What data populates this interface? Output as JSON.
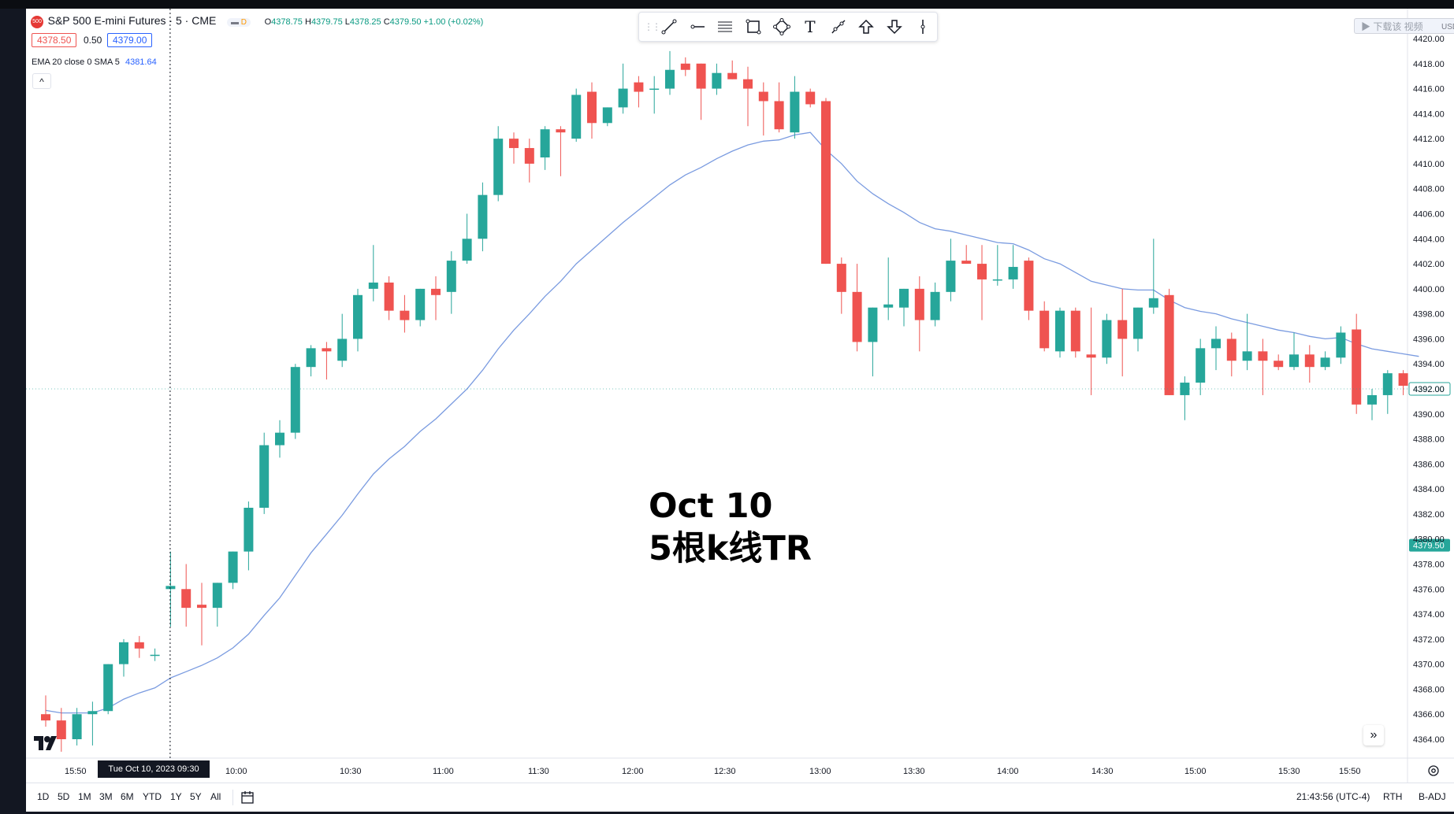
{
  "header": {
    "symbol_badge": "500",
    "symbol_title": "S&P 500 E-mini Futures · 5 · CME",
    "status_badge": "D",
    "open_label": "O",
    "open": "4378.75",
    "high_label": "H",
    "high": "4379.75",
    "low_label": "L",
    "low": "4378.25",
    "close_label": "C",
    "close": "4379.50",
    "change": "+1.00 (+0.02%)",
    "bid": "4378.50",
    "spread": "0.50",
    "ask": "4379.00",
    "indicator_label": "EMA 20 close 0 SMA 5",
    "indicator_value": "4381.64",
    "collapse_glyph": "^"
  },
  "watermark_text": "▶ 下载该 视频",
  "currency": "USD",
  "annotation": {
    "line1": "Oct 10",
    "line2": "5根k线TR"
  },
  "crosshair_label": "Tue Oct 10, 2023   09:30",
  "bottom": {
    "ranges": [
      "1D",
      "5D",
      "1M",
      "3M",
      "6M",
      "YTD",
      "1Y",
      "5Y",
      "All"
    ],
    "clock": "21:43:56 (UTC-4)",
    "session": "RTH",
    "adjust": "B-ADJ"
  },
  "colors": {
    "up": "#26a69a",
    "down": "#ef5350",
    "ema": "#7a9be0",
    "crosshair": "#131722",
    "last": "#26a69a"
  },
  "icons": [
    "trend-line-icon",
    "horizontal-ray-icon",
    "parallel-channel-icon",
    "rectangle-icon",
    "path-icon",
    "text-icon",
    "brush-icon",
    "arrow-up-icon",
    "arrow-down-icon",
    "vertical-line-icon",
    "tradingview-logo-icon",
    "scroll-right-icon",
    "settings-icon",
    "calendar-icon"
  ],
  "chart_data": {
    "type": "candlestick",
    "title": "S&P 500 E-mini Futures · 5 · CME",
    "ylim": [
      4363.0,
      4421.0
    ],
    "y_ticks": [
      "4420.00",
      "4418.00",
      "4416.00",
      "4414.00",
      "4412.00",
      "4410.00",
      "4408.00",
      "4406.00",
      "4404.00",
      "4402.00",
      "4400.00",
      "4398.00",
      "4396.00",
      "4394.00",
      "4392.00",
      "4390.00",
      "4388.00",
      "4386.00",
      "4384.00",
      "4382.00",
      "4380.00",
      "4378.00",
      "4376.00",
      "4374.00",
      "4372.00",
      "4370.00",
      "4368.00",
      "4366.00",
      "4364.00"
    ],
    "x_ticks": [
      "15:50",
      "10:00",
      "10:30",
      "11:00",
      "11:30",
      "12:00",
      "12:30",
      "13:00",
      "13:30",
      "14:00",
      "14:30",
      "15:00",
      "15:30",
      "15:50"
    ],
    "price_labels": {
      "current": "4392.00",
      "last": "4379.50"
    },
    "candles": [
      {
        "o": 4366.0,
        "h": 4367.5,
        "l": 4365.0,
        "c": 4365.5
      },
      {
        "o": 4365.5,
        "h": 4366.5,
        "l": 4363.0,
        "c": 4364.0
      },
      {
        "o": 4364.0,
        "h": 4366.5,
        "l": 4363.5,
        "c": 4366.0
      },
      {
        "o": 4366.0,
        "h": 4367.0,
        "l": 4363.5,
        "c": 4366.25
      },
      {
        "o": 4366.25,
        "h": 4370.0,
        "l": 4366.0,
        "c": 4370.0
      },
      {
        "o": 4370.0,
        "h": 4372.0,
        "l": 4369.0,
        "c": 4371.75
      },
      {
        "o": 4371.75,
        "h": 4372.25,
        "l": 4370.5,
        "c": 4371.25
      },
      {
        "o": 4370.75,
        "h": 4371.25,
        "l": 4370.25,
        "c": 4370.75
      },
      {
        "o": 4376.0,
        "h": 4379.0,
        "l": 4373.0,
        "c": 4376.25
      },
      {
        "o": 4376.0,
        "h": 4378.0,
        "l": 4373.0,
        "c": 4374.5
      },
      {
        "o": 4374.75,
        "h": 4376.5,
        "l": 4371.5,
        "c": 4374.5
      },
      {
        "o": 4374.5,
        "h": 4376.5,
        "l": 4373.0,
        "c": 4376.5
      },
      {
        "o": 4376.5,
        "h": 4379.0,
        "l": 4376.0,
        "c": 4379.0
      },
      {
        "o": 4379.0,
        "h": 4383.0,
        "l": 4377.5,
        "c": 4382.5
      },
      {
        "o": 4382.5,
        "h": 4388.5,
        "l": 4382.0,
        "c": 4387.5
      },
      {
        "o": 4387.5,
        "h": 4389.5,
        "l": 4386.5,
        "c": 4388.5
      },
      {
        "o": 4388.5,
        "h": 4394.0,
        "l": 4388.0,
        "c": 4393.75
      },
      {
        "o": 4393.75,
        "h": 4395.5,
        "l": 4393.0,
        "c": 4395.25
      },
      {
        "o": 4395.25,
        "h": 4395.75,
        "l": 4392.75,
        "c": 4395.0
      },
      {
        "o": 4394.25,
        "h": 4398.0,
        "l": 4393.75,
        "c": 4396.0
      },
      {
        "o": 4396.0,
        "h": 4400.0,
        "l": 4395.0,
        "c": 4399.5
      },
      {
        "o": 4400.0,
        "h": 4403.5,
        "l": 4399.0,
        "c": 4400.5
      },
      {
        "o": 4400.5,
        "h": 4401.0,
        "l": 4397.5,
        "c": 4398.25
      },
      {
        "o": 4398.25,
        "h": 4399.5,
        "l": 4396.5,
        "c": 4397.5
      },
      {
        "o": 4397.5,
        "h": 4400.0,
        "l": 4397.0,
        "c": 4400.0
      },
      {
        "o": 4400.0,
        "h": 4401.0,
        "l": 4397.5,
        "c": 4399.5
      },
      {
        "o": 4399.75,
        "h": 4403.0,
        "l": 4398.0,
        "c": 4402.25
      },
      {
        "o": 4402.25,
        "h": 4406.0,
        "l": 4402.0,
        "c": 4404.0
      },
      {
        "o": 4404.0,
        "h": 4408.5,
        "l": 4403.0,
        "c": 4407.5
      },
      {
        "o": 4407.5,
        "h": 4413.0,
        "l": 4407.0,
        "c": 4412.0
      },
      {
        "o": 4412.0,
        "h": 4412.5,
        "l": 4410.0,
        "c": 4411.25
      },
      {
        "o": 4411.25,
        "h": 4412.0,
        "l": 4408.5,
        "c": 4410.0
      },
      {
        "o": 4410.5,
        "h": 4413.0,
        "l": 4409.5,
        "c": 4412.75
      },
      {
        "o": 4412.75,
        "h": 4413.0,
        "l": 4409.0,
        "c": 4412.5
      },
      {
        "o": 4412.0,
        "h": 4416.0,
        "l": 4411.75,
        "c": 4415.5
      },
      {
        "o": 4415.75,
        "h": 4416.5,
        "l": 4412.0,
        "c": 4413.25
      },
      {
        "o": 4413.25,
        "h": 4414.5,
        "l": 4413.0,
        "c": 4414.5
      },
      {
        "o": 4414.5,
        "h": 4418.0,
        "l": 4414.0,
        "c": 4416.0
      },
      {
        "o": 4416.5,
        "h": 4417.0,
        "l": 4414.5,
        "c": 4415.75
      },
      {
        "o": 4416.0,
        "h": 4417.0,
        "l": 4414.0,
        "c": 4416.0
      },
      {
        "o": 4416.0,
        "h": 4419.0,
        "l": 4415.5,
        "c": 4417.5
      },
      {
        "o": 4418.0,
        "h": 4418.5,
        "l": 4417.0,
        "c": 4417.5
      },
      {
        "o": 4418.0,
        "h": 4418.0,
        "l": 4413.5,
        "c": 4416.0
      },
      {
        "o": 4416.0,
        "h": 4418.0,
        "l": 4415.5,
        "c": 4417.25
      },
      {
        "o": 4417.25,
        "h": 4418.25,
        "l": 4416.75,
        "c": 4416.75
      },
      {
        "o": 4416.75,
        "h": 4417.75,
        "l": 4413.0,
        "c": 4416.0
      },
      {
        "o": 4415.75,
        "h": 4416.5,
        "l": 4412.25,
        "c": 4415.0
      },
      {
        "o": 4415.0,
        "h": 4416.5,
        "l": 4412.5,
        "c": 4412.75
      },
      {
        "o": 4412.5,
        "h": 4417.0,
        "l": 4412.0,
        "c": 4415.75
      },
      {
        "o": 4415.75,
        "h": 4416.0,
        "l": 4414.5,
        "c": 4414.75
      },
      {
        "o": 4415.0,
        "h": 4415.25,
        "l": 4402.0,
        "c": 4402.0
      },
      {
        "o": 4402.0,
        "h": 4402.5,
        "l": 4398.0,
        "c": 4399.75
      },
      {
        "o": 4399.75,
        "h": 4402.0,
        "l": 4395.0,
        "c": 4395.75
      },
      {
        "o": 4395.75,
        "h": 4398.5,
        "l": 4393.0,
        "c": 4398.5
      },
      {
        "o": 4398.5,
        "h": 4402.5,
        "l": 4397.5,
        "c": 4398.75
      },
      {
        "o": 4398.5,
        "h": 4400.0,
        "l": 4397.0,
        "c": 4400.0
      },
      {
        "o": 4400.0,
        "h": 4401.0,
        "l": 4395.0,
        "c": 4397.5
      },
      {
        "o": 4397.5,
        "h": 4400.5,
        "l": 4397.0,
        "c": 4399.75
      },
      {
        "o": 4399.75,
        "h": 4404.0,
        "l": 4399.0,
        "c": 4402.25
      },
      {
        "o": 4402.25,
        "h": 4403.5,
        "l": 4402.0,
        "c": 4402.0
      },
      {
        "o": 4402.0,
        "h": 4403.5,
        "l": 4397.5,
        "c": 4400.75
      },
      {
        "o": 4400.75,
        "h": 4403.5,
        "l": 4400.25,
        "c": 4400.75
      },
      {
        "o": 4400.75,
        "h": 4403.5,
        "l": 4400.0,
        "c": 4401.75
      },
      {
        "o": 4402.25,
        "h": 4402.5,
        "l": 4397.5,
        "c": 4398.25
      },
      {
        "o": 4398.25,
        "h": 4399.0,
        "l": 4395.0,
        "c": 4395.25
      },
      {
        "o": 4395.0,
        "h": 4398.5,
        "l": 4394.5,
        "c": 4398.25
      },
      {
        "o": 4398.25,
        "h": 4398.5,
        "l": 4394.5,
        "c": 4395.0
      },
      {
        "o": 4394.75,
        "h": 4398.5,
        "l": 4391.5,
        "c": 4394.5
      },
      {
        "o": 4394.5,
        "h": 4398.0,
        "l": 4394.0,
        "c": 4397.5
      },
      {
        "o": 4397.5,
        "h": 4400.0,
        "l": 4393.0,
        "c": 4396.0
      },
      {
        "o": 4396.0,
        "h": 4398.5,
        "l": 4395.0,
        "c": 4398.5
      },
      {
        "o": 4398.5,
        "h": 4404.0,
        "l": 4398.0,
        "c": 4399.25
      },
      {
        "o": 4399.5,
        "h": 4400.0,
        "l": 4391.5,
        "c": 4391.5
      },
      {
        "o": 4391.5,
        "h": 4393.0,
        "l": 4389.5,
        "c": 4392.5
      },
      {
        "o": 4392.5,
        "h": 4396.0,
        "l": 4391.5,
        "c": 4395.25
      },
      {
        "o": 4395.25,
        "h": 4397.0,
        "l": 4393.5,
        "c": 4396.0
      },
      {
        "o": 4396.0,
        "h": 4396.5,
        "l": 4393.0,
        "c": 4394.25
      },
      {
        "o": 4394.25,
        "h": 4398.0,
        "l": 4393.5,
        "c": 4395.0
      },
      {
        "o": 4395.0,
        "h": 4396.0,
        "l": 4391.5,
        "c": 4394.25
      },
      {
        "o": 4394.25,
        "h": 4394.75,
        "l": 4393.5,
        "c": 4393.75
      },
      {
        "o": 4393.75,
        "h": 4396.5,
        "l": 4393.5,
        "c": 4394.75
      },
      {
        "o": 4394.75,
        "h": 4395.5,
        "l": 4392.5,
        "c": 4393.75
      },
      {
        "o": 4393.75,
        "h": 4395.0,
        "l": 4393.5,
        "c": 4394.5
      },
      {
        "o": 4394.5,
        "h": 4397.0,
        "l": 4394.0,
        "c": 4396.5
      },
      {
        "o": 4396.75,
        "h": 4398.0,
        "l": 4390.0,
        "c": 4390.75
      },
      {
        "o": 4390.75,
        "h": 4392.0,
        "l": 4389.5,
        "c": 4391.5
      },
      {
        "o": 4391.5,
        "h": 4393.5,
        "l": 4390.0,
        "c": 4393.25
      },
      {
        "o": 4393.25,
        "h": 4393.5,
        "l": 4391.5,
        "c": 4392.25
      },
      {
        "o": 4392.0,
        "h": 4392.5,
        "l": 4391.5,
        "c": 4392.0
      }
    ],
    "ema_series": {
      "name": "EMA 20",
      "values": [
        4366.3,
        4366.1,
        4366.1,
        4366.1,
        4366.5,
        4367.2,
        4367.7,
        4368.1,
        4368.9,
        4369.4,
        4369.9,
        4370.5,
        4371.3,
        4372.4,
        4373.9,
        4375.3,
        4377.1,
        4378.9,
        4380.4,
        4381.9,
        4383.6,
        4385.2,
        4386.4,
        4387.4,
        4388.6,
        4389.6,
        4390.8,
        4392.0,
        4393.5,
        4395.2,
        4396.7,
        4398.0,
        4399.4,
        4400.6,
        4402.0,
        4403.1,
        4404.2,
        4405.3,
        4406.3,
        4407.3,
        4408.3,
        4409.1,
        4409.7,
        4410.4,
        4411.0,
        4411.5,
        4411.8,
        4411.9,
        4412.3,
        4412.5,
        4411.1,
        4410.0,
        4408.6,
        4407.6,
        4406.8,
        4406.1,
        4405.3,
        4404.8,
        4404.6,
        4404.3,
        4404.0,
        4403.7,
        4403.6,
        4403.1,
        4402.4,
        4402.0,
        4401.3,
        4400.6,
        4400.3,
        4400.0,
        4399.9,
        4399.9,
        4399.1,
        4398.5,
        4398.2,
        4398.0,
        4397.6,
        4397.3,
        4397.0,
        4396.7,
        4396.5,
        4396.2,
        4396.0,
        4396.1,
        4395.6,
        4395.2,
        4395.0,
        4394.8,
        4394.6
      ]
    }
  }
}
